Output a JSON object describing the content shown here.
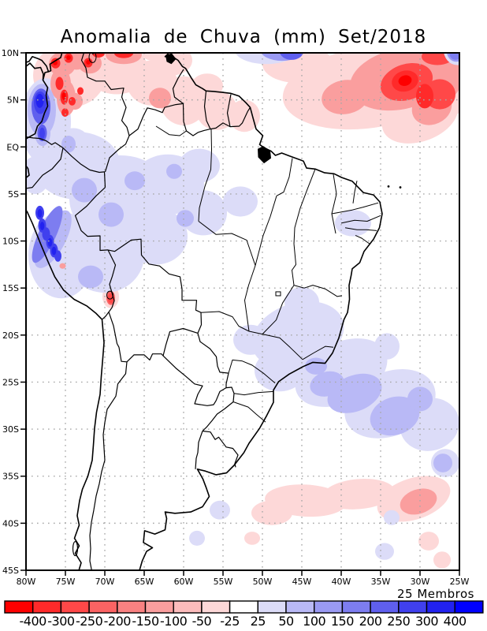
{
  "title": "Anomalia de Chuva (mm) Set/2018",
  "annotation": "25 Membros",
  "axes": {
    "lat_labels": [
      "10N",
      "5N",
      "EQ",
      "5S",
      "10S",
      "15S",
      "20S",
      "25S",
      "30S",
      "35S",
      "40S",
      "45S"
    ],
    "lon_labels": [
      "80W",
      "75W",
      "70W",
      "65W",
      "60W",
      "55W",
      "50W",
      "45W",
      "40W",
      "35W",
      "30W",
      "25W"
    ]
  },
  "colorbar": {
    "labels": [
      "-400",
      "-300",
      "-250",
      "-200",
      "-150",
      "-100",
      "-50",
      "-25",
      "25",
      "50",
      "100",
      "150",
      "200",
      "250",
      "300",
      "400"
    ],
    "colors": [
      "#fe0000",
      "#ff2a2a",
      "#ff4848",
      "#fb6363",
      "#f98181",
      "#fa9e9e",
      "#fcbcbc",
      "#fdd8d8",
      "#ffffff",
      "#dcdcf8",
      "#b9b9f6",
      "#9a9af3",
      "#7d7df0",
      "#5f5fee",
      "#4040ee",
      "#2222f0",
      "#0000fe"
    ]
  },
  "chart_data": {
    "type": "heatmap",
    "subtype": "filled-contour-anomaly-map",
    "title": "Anomalia de Chuva (mm) Set/2018",
    "units": "mm",
    "region": "South America",
    "lon_range": [
      "80W",
      "25W"
    ],
    "lat_range": [
      "10N",
      "45S"
    ],
    "grid_interval_deg": 5,
    "ensemble_members": 25,
    "levels": [
      -400,
      -300,
      -250,
      -200,
      -150,
      -100,
      -50,
      -25,
      25,
      50,
      100,
      150,
      200,
      250,
      300,
      400
    ],
    "legend_position": "bottom",
    "anomalies": [
      {
        "area": "northern Colombia / Venezuela chain",
        "lon": "70W-77W",
        "lat": "3N-10N",
        "anomaly_mm": -150,
        "peak_mm": -350
      },
      {
        "area": "Pacific coast of Colombia",
        "lon": "77W-79W",
        "lat": "1N-6N",
        "anomaly_mm": 250,
        "peak_mm": 350
      },
      {
        "area": "tropical North Atlantic blob",
        "lon": "26W-47W",
        "lat": "2N-10N",
        "anomaly_mm": -150,
        "peak_mm": -400
      },
      {
        "area": "north-edge Atlantic blue band",
        "lon": "44W-53W and 25W-27W",
        "lat": "9N-10N",
        "anomaly_mm": 150
      },
      {
        "area": "Peruvian Andes blue chain",
        "lon": "75W-79W",
        "lat": "6S-12S",
        "anomaly_mm": 250,
        "peak_mm": 350
      },
      {
        "area": "western Amazon light field",
        "lon": "52W-79W",
        "lat": "0-14S",
        "anomaly_mm": 35
      },
      {
        "area": "Altiplano red spot (Peru/Bolivia border)",
        "lon": "69W",
        "lat": "16S",
        "anomaly_mm": -250
      },
      {
        "area": "southeast Brazil and adjacent Atlantic",
        "lon": "27W-53W",
        "lat": "16S-33S",
        "anomaly_mm": 40,
        "peak_mm": 90
      },
      {
        "area": "northeast Brazil interior patch",
        "lon": "36W-41W",
        "lat": "7S-9S",
        "anomaly_mm": 35
      },
      {
        "area": "South Atlantic pink band",
        "lon": "27W-52W",
        "lat": "36S-39S",
        "anomaly_mm": -40,
        "peak_mm": -90
      }
    ]
  }
}
